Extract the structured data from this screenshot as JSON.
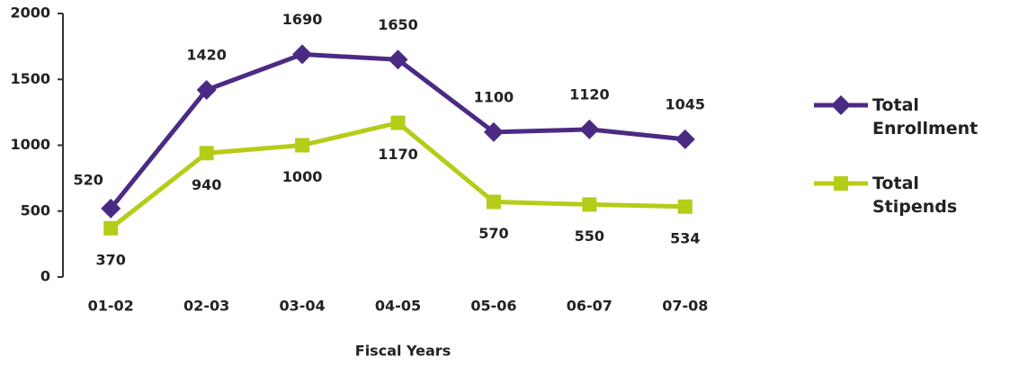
{
  "chart_data": {
    "type": "line",
    "x_label": "Fiscal Years",
    "categories": [
      "01-02",
      "02-03",
      "03-04",
      "04-05",
      "05-06",
      "06-07",
      "07-08"
    ],
    "series": [
      {
        "name": "Total Enrollment",
        "color": "#4b2a84",
        "marker": "diamond",
        "values": [
          520,
          1420,
          1690,
          1650,
          1100,
          1120,
          1045
        ]
      },
      {
        "name": "Total Stipends",
        "color": "#b5cc18",
        "marker": "square",
        "values": [
          370,
          940,
          1000,
          1170,
          570,
          550,
          534
        ]
      }
    ],
    "ylim": [
      0,
      2000
    ],
    "yticks": [
      0,
      500,
      1000,
      1500,
      2000
    ],
    "grid": false,
    "legend": "right"
  }
}
